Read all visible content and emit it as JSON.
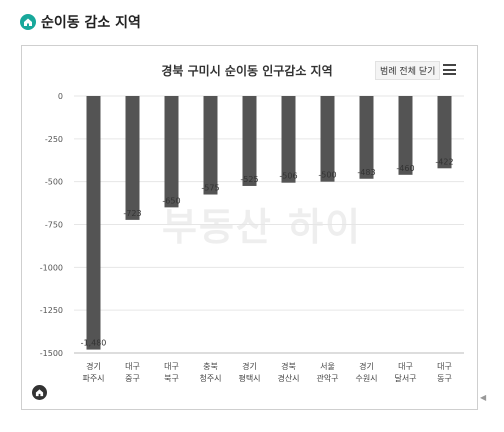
{
  "header": {
    "title": "순이동 감소 지역",
    "icon": "home-icon"
  },
  "watermark_text": "부동산 하이",
  "legend_button_label": "범례 전체 닫기",
  "menu_icon": "hamburger-menu-icon",
  "colors": {
    "bar": "#545454",
    "accent": "#18a89b",
    "grid": "#e6e6e6"
  },
  "chart_data": {
    "type": "bar",
    "title": "경북 구미시 순이동 인구감소 지역",
    "categories": [
      [
        "경기",
        "파주시"
      ],
      [
        "대구",
        "중구"
      ],
      [
        "대구",
        "북구"
      ],
      [
        "충북",
        "청주시"
      ],
      [
        "경기",
        "평택시"
      ],
      [
        "경북",
        "경산시"
      ],
      [
        "서울",
        "관악구"
      ],
      [
        "경기",
        "수원시"
      ],
      [
        "대구",
        "달서구"
      ],
      [
        "대구",
        "동구"
      ]
    ],
    "values": [
      -1480,
      -723,
      -650,
      -575,
      -525,
      -506,
      -500,
      -483,
      -460,
      -422
    ],
    "value_labels": [
      "-1,480",
      "-723",
      "-650",
      "-575",
      "-525",
      "-506",
      "-500",
      "-483",
      "-460",
      "-422"
    ],
    "yticks": [
      0,
      -250,
      -500,
      -750,
      -1000,
      -1250,
      -1500
    ],
    "ylim": [
      -1500,
      0
    ],
    "grid": true,
    "legend": "hidden"
  }
}
